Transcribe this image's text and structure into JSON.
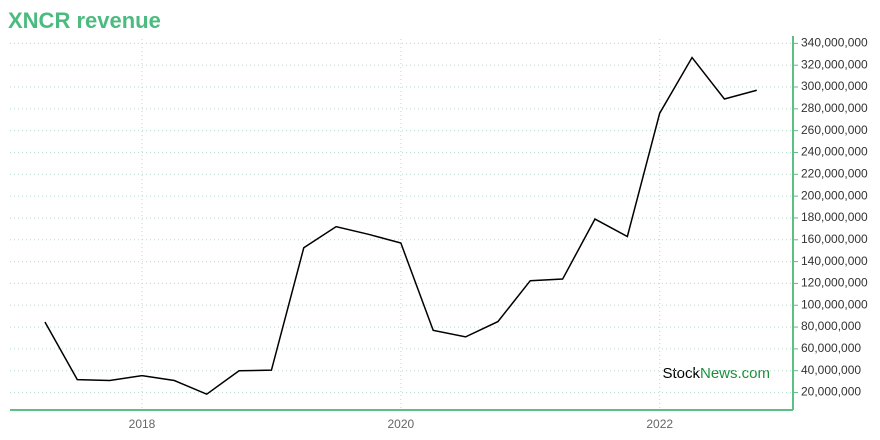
{
  "chart_data": {
    "type": "line",
    "title": "XNCR revenue",
    "x": [
      2017.25,
      2017.5,
      2017.75,
      2018,
      2018.25,
      2018.5,
      2018.75,
      2019,
      2019.25,
      2019.5,
      2019.75,
      2020,
      2020.25,
      2020.5,
      2020.75,
      2021,
      2021.25,
      2021.5,
      2021.75,
      2022,
      2022.25,
      2022.5,
      2022.75
    ],
    "series": [
      {
        "color": "#000000",
        "values": [
          84600000,
          31800000,
          31000000,
          35500000,
          31000000,
          18500000,
          40000000,
          40500000,
          152700000,
          172000000,
          165000000,
          157000000,
          77000000,
          71000000,
          85000000,
          122500000,
          124000000,
          179000000,
          163000000,
          276000000,
          327000000,
          289000000,
          297000000
        ]
      }
    ],
    "xlim": [
      2016.98,
      2023.03
    ],
    "xticks": [
      2018,
      2020,
      2022
    ],
    "ylim": [
      4000000,
      344000000
    ],
    "yticks": [
      {
        "value": 20000000,
        "label": "20,000,000"
      },
      {
        "value": 40000000,
        "label": "40,000,000"
      },
      {
        "value": 60000000,
        "label": "60,000,000"
      },
      {
        "value": 80000000,
        "label": "80,000,000"
      },
      {
        "value": 100000000,
        "label": "100,000,000"
      },
      {
        "value": 120000000,
        "label": "120,000,000"
      },
      {
        "value": 140000000,
        "label": "140,000,000"
      },
      {
        "value": 160000000,
        "label": "160,000,000"
      },
      {
        "value": 180000000,
        "label": "180,000,000"
      },
      {
        "value": 200000000,
        "label": "200,000,000"
      },
      {
        "value": 220000000,
        "label": "220,000,000"
      },
      {
        "value": 240000000,
        "label": "240,000,000"
      },
      {
        "value": 260000000,
        "label": "260,000,000"
      },
      {
        "value": 280000000,
        "label": "280,000,000"
      },
      {
        "value": 300000000,
        "label": "300,000,000"
      },
      {
        "value": 320000000,
        "label": "320,000,000"
      },
      {
        "value": 340000000,
        "label": "340,000,000"
      }
    ],
    "grid": true,
    "source": [
      "Stock",
      "News.com"
    ]
  }
}
